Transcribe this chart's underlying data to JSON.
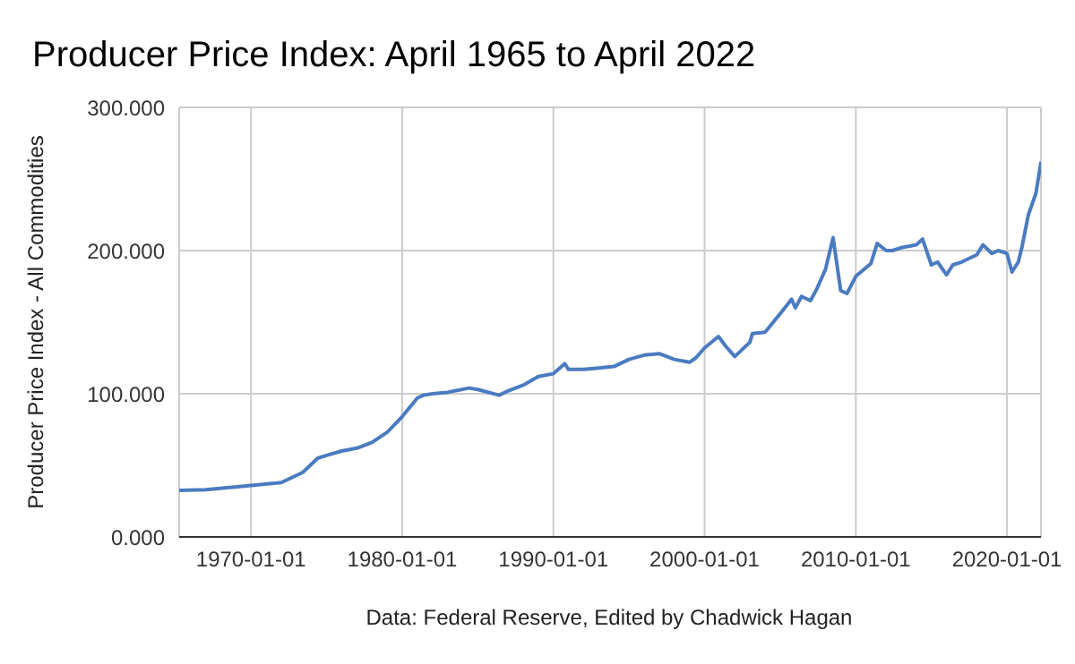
{
  "chart_data": {
    "type": "line",
    "title": "Producer Price Index: April 1965 to April 2022",
    "ylabel": "Producer Price Index - All Commodities",
    "annotations": [
      "Data: Federal Reserve, Edited by Chadwick Hagan"
    ],
    "x": [
      "1965-04",
      "1967-01",
      "1970-01",
      "1972-01",
      "1973-06",
      "1974-06",
      "1975-01",
      "1976-01",
      "1977-01",
      "1978-01",
      "1979-01",
      "1980-01",
      "1981-01",
      "1981-06",
      "1982-01",
      "1983-01",
      "1984-06",
      "1985-01",
      "1986-06",
      "1987-01",
      "1988-01",
      "1989-01",
      "1990-01",
      "1990-10",
      "1991-01",
      "1992-01",
      "1993-01",
      "1994-01",
      "1995-01",
      "1996-01",
      "1997-01",
      "1998-01",
      "1999-01",
      "1999-06",
      "2000-01",
      "2000-12",
      "2001-06",
      "2002-01",
      "2003-01",
      "2003-03",
      "2004-01",
      "2005-01",
      "2005-10",
      "2006-01",
      "2006-06",
      "2007-01",
      "2007-06",
      "2008-01",
      "2008-07",
      "2009-01",
      "2009-06",
      "2010-01",
      "2011-01",
      "2011-06",
      "2012-01",
      "2012-06",
      "2013-01",
      "2014-01",
      "2014-06",
      "2015-01",
      "2015-06",
      "2016-01",
      "2016-06",
      "2017-01",
      "2018-01",
      "2018-06",
      "2019-01",
      "2019-06",
      "2020-01",
      "2020-05",
      "2020-10",
      "2021-01",
      "2021-06",
      "2021-12",
      "2022-04"
    ],
    "series": [
      {
        "color": "#4a7bc0",
        "values": [
          32.5,
          33,
          36,
          38,
          45,
          55,
          57,
          60,
          62,
          66,
          73,
          84,
          97,
          99,
          100,
          101,
          104,
          103,
          99,
          102,
          106,
          112,
          114,
          121,
          117,
          117,
          118,
          119,
          124,
          127,
          128,
          124,
          122,
          125,
          132,
          140,
          133,
          126,
          136,
          142,
          143,
          156,
          166,
          160,
          168,
          165,
          173,
          187,
          209,
          172,
          170,
          182,
          191,
          205,
          200,
          200,
          202,
          204,
          208,
          190,
          192,
          183,
          190,
          192,
          197,
          204,
          198,
          200,
          198,
          185,
          192,
          203,
          225,
          240,
          262
        ]
      }
    ],
    "xlim": [
      "1965-04",
      "2022-04"
    ],
    "xticks": [
      "1970-01-01",
      "1980-01-01",
      "1990-01-01",
      "2000-01-01",
      "2010-01-01",
      "2020-01-01"
    ],
    "ylim": [
      0,
      300
    ],
    "yticks": [
      {
        "value": 0,
        "label": "0.000"
      },
      {
        "value": 100,
        "label": "100.000"
      },
      {
        "value": 200,
        "label": "200.000"
      },
      {
        "value": 300,
        "label": "300.000"
      }
    ],
    "grid": true,
    "legend": false,
    "marker": "none",
    "line_style": "solid"
  }
}
